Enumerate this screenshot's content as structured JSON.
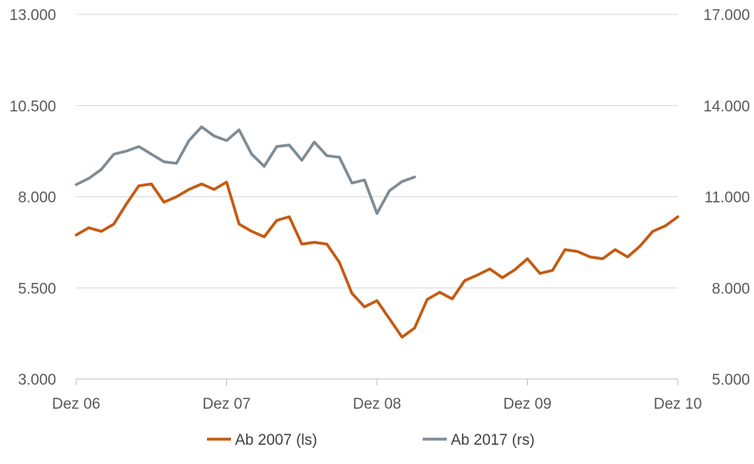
{
  "chart_data": {
    "type": "line",
    "title": "",
    "xlabel": "",
    "ylabel_left": "",
    "ylabel_right": "",
    "x_ticks": [
      {
        "label": "Dez 06",
        "month": 0
      },
      {
        "label": "Dez 07",
        "month": 12
      },
      {
        "label": "Dez 08",
        "month": 24
      },
      {
        "label": "Dez 09",
        "month": 36
      },
      {
        "label": "Dez 10",
        "month": 48
      }
    ],
    "xlim": [
      0,
      48
    ],
    "y_left": {
      "ticks": [
        3000,
        5500,
        8000,
        10500,
        13000
      ],
      "tick_labels": [
        "3.000",
        "5.500",
        "8.000",
        "10.500",
        "13.000"
      ],
      "lim": [
        3000,
        13000
      ]
    },
    "y_right": {
      "ticks": [
        5000,
        8000,
        11000,
        14000,
        17000
      ],
      "tick_labels": [
        "5.000",
        "8.000",
        "11.000",
        "14.000",
        "17.000"
      ],
      "lim": [
        5000,
        17000
      ]
    },
    "grid": true,
    "legend_position": "bottom",
    "series": [
      {
        "name": "Ab 2007 (ls)",
        "axis": "left",
        "color": "#c55a11",
        "x": [
          0,
          1,
          2,
          3,
          4,
          5,
          6,
          7,
          8,
          9,
          10,
          11,
          12,
          13,
          14,
          15,
          16,
          17,
          18,
          19,
          20,
          21,
          22,
          23,
          24,
          25,
          26,
          27,
          28,
          29,
          30,
          31,
          32,
          33,
          34,
          35,
          36,
          37,
          38,
          39,
          40,
          41,
          42,
          43,
          44,
          45,
          46,
          47,
          48
        ],
        "values": [
          6950,
          7150,
          7050,
          7250,
          7800,
          8300,
          8350,
          7850,
          8000,
          8200,
          8350,
          8200,
          8400,
          7250,
          7050,
          6900,
          7350,
          7450,
          6700,
          6750,
          6700,
          6200,
          5350,
          4980,
          5150,
          4650,
          4150,
          4400,
          5180,
          5380,
          5200,
          5700,
          5850,
          6020,
          5780,
          6000,
          6300,
          5900,
          5980,
          6550,
          6500,
          6350,
          6300,
          6550,
          6350,
          6650,
          7050,
          7200,
          7450
        ]
      },
      {
        "name": "Ab 2017 (rs)",
        "axis": "right",
        "color": "#7f8c95",
        "x": [
          0,
          1,
          2,
          3,
          4,
          5,
          6,
          7,
          8,
          9,
          10,
          11,
          12,
          13,
          14,
          15,
          16,
          17,
          18,
          19,
          20,
          21,
          22,
          23,
          24,
          25,
          26,
          27,
          28
        ],
        "values": [
          11400,
          11600,
          11900,
          12400,
          12500,
          12650,
          12400,
          12150,
          12100,
          12850,
          13300,
          13000,
          12850,
          13200,
          12400,
          12000,
          12650,
          12700,
          12200,
          12800,
          12350,
          12300,
          11450,
          11550,
          10450,
          11200,
          11500,
          11650,
          null
        ]
      }
    ]
  }
}
